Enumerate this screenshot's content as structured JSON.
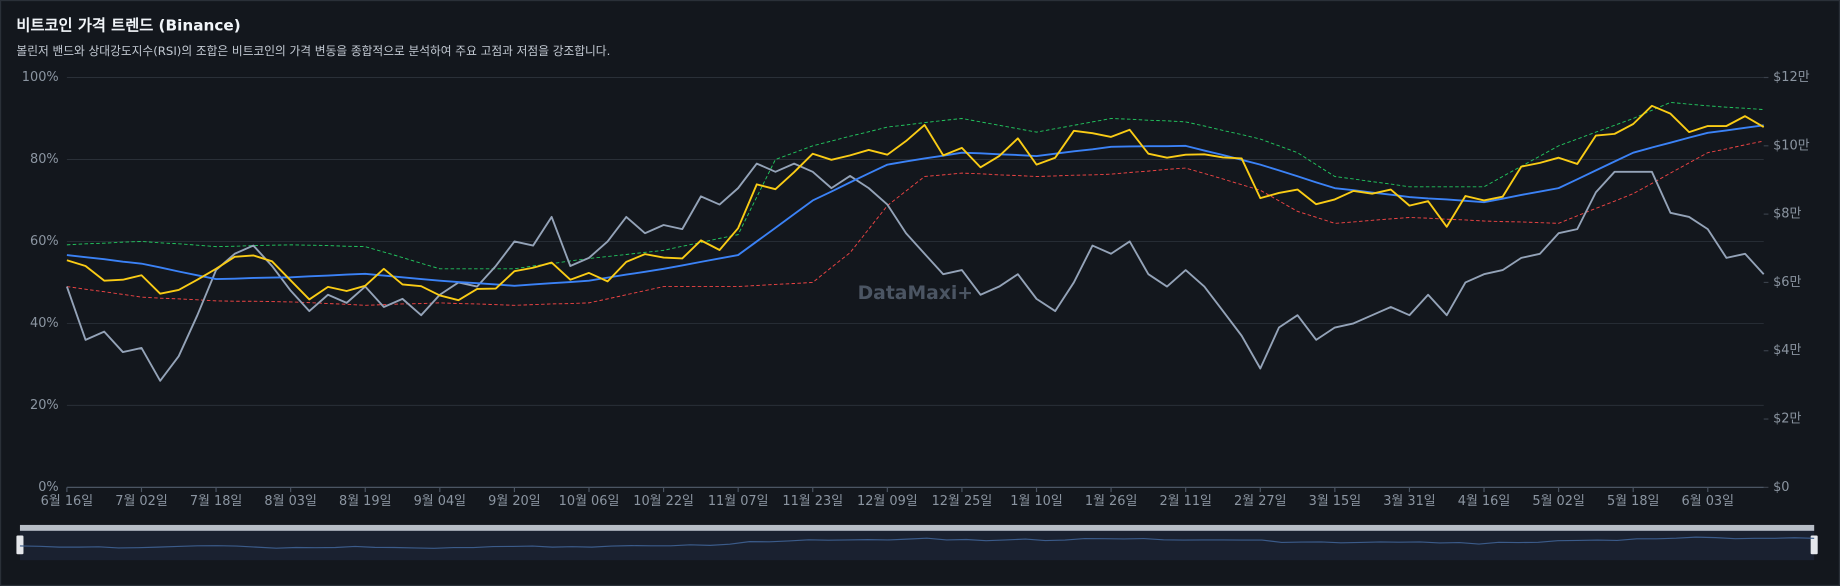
{
  "chart_data": {
    "type": "line",
    "title": "비트코인 가격 트렌드 (Binance)",
    "subtitle": "볼린저 밴드와 상대강도지수(RSI)의 조합은 비트코인의 가격 변동을 종합적으로 분석하여 주요 고점과 저점을 강조합니다.",
    "watermark": "DataMaxi+",
    "categories": [
      "6월 16일",
      null,
      null,
      null,
      "7월 02일",
      null,
      null,
      null,
      "7월 18일",
      null,
      null,
      null,
      "8월 03일",
      null,
      null,
      null,
      "8월 19일",
      null,
      null,
      null,
      "9월 04일",
      null,
      null,
      null,
      "9월 20일",
      null,
      null,
      null,
      "10월 06일",
      null,
      null,
      null,
      "10월 22일",
      null,
      null,
      null,
      "11월 07일",
      null,
      null,
      null,
      "11월 23일",
      null,
      null,
      null,
      "12월 09일",
      null,
      null,
      null,
      "12월 25일",
      null,
      null,
      null,
      "1월 10일",
      null,
      null,
      null,
      "1월 26일",
      null,
      null,
      null,
      "2월 11일",
      null,
      null,
      null,
      "2월 27일",
      null,
      null,
      null,
      "3월 15일",
      null,
      null,
      null,
      "3월 31일",
      null,
      null,
      null,
      "4월 16일",
      null,
      null,
      null,
      "5월 02일",
      null,
      null,
      null,
      "5월 18일",
      null,
      null,
      null,
      "6월 03일",
      null,
      null,
      null
    ],
    "series": [
      {
        "color": "#22c55e",
        "style": "dashed",
        "axis": "y2",
        "values": [
          71000,
          71300,
          71500,
          71800,
          72000,
          71600,
          71300,
          70900,
          70500,
          70600,
          70800,
          70900,
          71000,
          70900,
          70800,
          70600,
          70500,
          68900,
          67300,
          65600,
          64000,
          64000,
          64000,
          64000,
          64000,
          64800,
          65500,
          66300,
          67000,
          67600,
          68200,
          68800,
          69400,
          70600,
          71700,
          72900,
          74000,
          85000,
          96000,
          98000,
          100000,
          101400,
          102800,
          104100,
          105500,
          106100,
          106800,
          107400,
          108000,
          107000,
          106000,
          105000,
          104000,
          105000,
          106000,
          107000,
          108000,
          107800,
          107500,
          107300,
          107000,
          105800,
          104500,
          103300,
          102000,
          100000,
          98000,
          94500,
          91000,
          90300,
          89500,
          88800,
          88000,
          88000,
          88000,
          88000,
          88000,
          91000,
          94000,
          97000,
          100000,
          102000,
          104000,
          106000,
          108000,
          110400,
          112700,
          112200,
          111700,
          111300,
          111000,
          110600
        ]
      },
      {
        "color": "#ef4444",
        "style": "dashed",
        "axis": "y2",
        "values": [
          58800,
          58000,
          57300,
          56500,
          55700,
          55400,
          55200,
          54900,
          54600,
          54500,
          54500,
          54400,
          54300,
          54100,
          53800,
          53600,
          53300,
          53500,
          53700,
          53800,
          54000,
          53800,
          53700,
          53500,
          53300,
          53500,
          53700,
          53800,
          54000,
          55200,
          56400,
          57600,
          58800,
          58800,
          58800,
          58800,
          58800,
          59100,
          59400,
          59700,
          60000,
          64400,
          68700,
          75600,
          82500,
          86800,
          91000,
          91500,
          92000,
          91800,
          91500,
          91300,
          91000,
          91200,
          91400,
          91500,
          91700,
          92200,
          92600,
          93100,
          93500,
          91900,
          90300,
          88600,
          87000,
          83900,
          80800,
          79100,
          77300,
          77700,
          78200,
          78600,
          79000,
          78800,
          78500,
          78300,
          78000,
          77800,
          77700,
          77500,
          77300,
          79500,
          81700,
          83800,
          86000,
          89000,
          92000,
          95000,
          98000,
          99100,
          100300,
          101400
        ]
      },
      {
        "color": "#94a3b8",
        "style": "solid",
        "axis": "y",
        "values": [
          49,
          36,
          38,
          33,
          34,
          26,
          32,
          42,
          53,
          57,
          59,
          54,
          48,
          43,
          47,
          45,
          49,
          44,
          46,
          42,
          47,
          50,
          49,
          54,
          60,
          59,
          66,
          54,
          56,
          60,
          66,
          62,
          64,
          63,
          71,
          69,
          73,
          79,
          77,
          79,
          77,
          73,
          76,
          73,
          69,
          62,
          57,
          52,
          53,
          47,
          49,
          52,
          46,
          43,
          50,
          59,
          57,
          60,
          52,
          49,
          53,
          49,
          43,
          37,
          29,
          39,
          42,
          36,
          39,
          40,
          42,
          44,
          42,
          47,
          42,
          50,
          52,
          53,
          56,
          57,
          62,
          63,
          72,
          77,
          77,
          77,
          67,
          66,
          63,
          56,
          57,
          52
        ]
      },
      {
        "color": "#3b82f6",
        "style": "solid",
        "axis": "y2",
        "values": [
          68000,
          67400,
          66800,
          66100,
          65500,
          64400,
          63200,
          62100,
          61000,
          61100,
          61300,
          61400,
          61500,
          61800,
          62000,
          62300,
          62500,
          62000,
          61500,
          61000,
          60500,
          60100,
          59800,
          59400,
          59000,
          59400,
          59800,
          60100,
          60500,
          61400,
          62300,
          63100,
          64000,
          65000,
          66000,
          67000,
          68000,
          72000,
          76000,
          80000,
          84000,
          86600,
          89300,
          91900,
          94500,
          95400,
          96300,
          97100,
          98000,
          97800,
          97500,
          97300,
          97000,
          97700,
          98400,
          99000,
          99700,
          99800,
          99900,
          99900,
          100000,
          98600,
          97300,
          95900,
          94500,
          92800,
          91100,
          89300,
          87600,
          87000,
          86300,
          85700,
          85000,
          84600,
          84300,
          83900,
          83500,
          84500,
          85600,
          86600,
          87600,
          90200,
          92800,
          95400,
          98000,
          99500,
          100900,
          102400,
          103800,
          104500,
          105300,
          106000
        ]
      },
      {
        "color": "#facc15",
        "style": "solid",
        "axis": "y2",
        "values": [
          66500,
          64800,
          60500,
          60800,
          62100,
          56700,
          57800,
          60800,
          64000,
          67500,
          67900,
          66200,
          60600,
          55000,
          58700,
          57500,
          59000,
          64000,
          59400,
          58900,
          56200,
          54800,
          58100,
          58200,
          63300,
          64300,
          65800,
          60800,
          62800,
          60300,
          66000,
          68300,
          67300,
          67000,
          72300,
          69500,
          75900,
          88700,
          87300,
          92300,
          97700,
          95900,
          97200,
          98800,
          97400,
          101400,
          106100,
          97200,
          99400,
          93700,
          97000,
          102200,
          94500,
          96500,
          104400,
          103700,
          102600,
          104700,
          97700,
          96500,
          97400,
          97500,
          96600,
          96300,
          84700,
          86200,
          87200,
          82900,
          84300,
          86800,
          86000,
          87200,
          82500,
          83800,
          76300,
          85300,
          84000,
          85100,
          93900,
          95000,
          96500,
          94700,
          103000,
          103500,
          106400,
          111700,
          109400,
          104000,
          105800,
          105800,
          108700,
          105500
        ]
      }
    ],
    "ylim": [
      0,
      100
    ],
    "yticks": [
      {
        "value": 0,
        "label": "0%"
      },
      {
        "value": 20,
        "label": "20%"
      },
      {
        "value": 40,
        "label": "40%"
      },
      {
        "value": 60,
        "label": "60%"
      },
      {
        "value": 80,
        "label": "80%"
      },
      {
        "value": 100,
        "label": "100%"
      }
    ],
    "y2lim": [
      0,
      120000
    ],
    "y2ticks": [
      {
        "value": 0,
        "label": "$0"
      },
      {
        "value": 20000,
        "label": "$2만"
      },
      {
        "value": 40000,
        "label": "$4만"
      },
      {
        "value": 60000,
        "label": "$6만"
      },
      {
        "value": 80000,
        "label": "$8만"
      },
      {
        "value": 100000,
        "label": "$10만"
      },
      {
        "value": 120000,
        "label": "$12만"
      }
    ],
    "grid": true
  }
}
